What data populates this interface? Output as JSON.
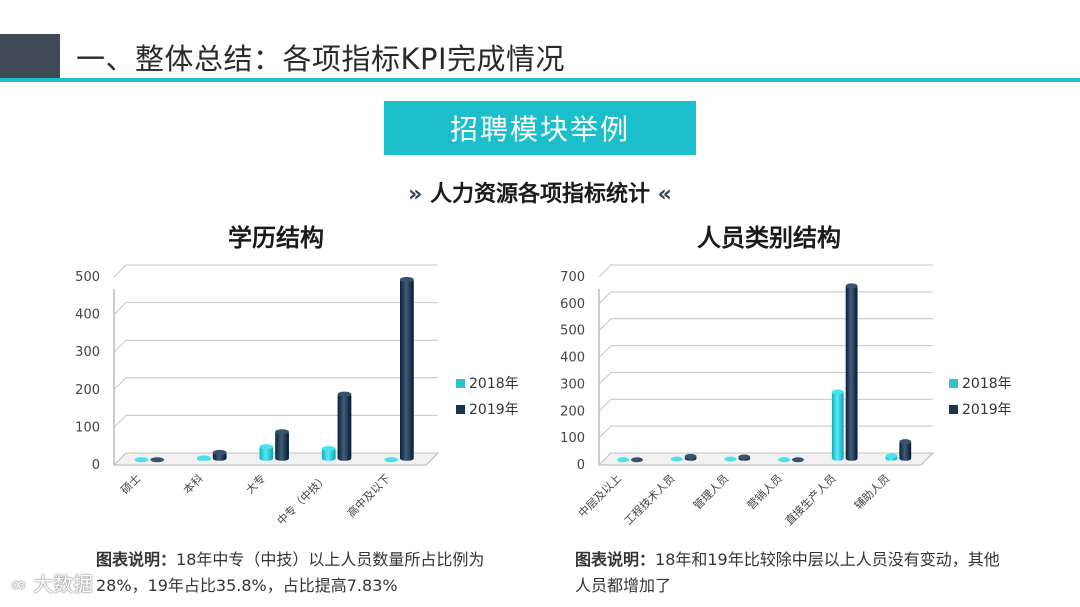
{
  "header": {
    "title": "一、整体总结：各项指标KPI完成情况"
  },
  "banner": {
    "label": "招聘模块举例"
  },
  "section": {
    "left_chevron": "»",
    "title": "人力资源各项指标统计",
    "right_chevron": "«"
  },
  "colors": {
    "accent": "#1bbfcc",
    "series_2018": "#2cc3cf",
    "series_2019": "#1b3550",
    "header_block": "#404a56"
  },
  "chart_data": [
    {
      "type": "bar",
      "title": "学历结构",
      "categories": [
        "硕士",
        "本科",
        "大专",
        "中专（中技）",
        "高中及以下"
      ],
      "series": [
        {
          "name": "2018年",
          "values": [
            3,
            10,
            40,
            35,
            2
          ]
        },
        {
          "name": "2019年",
          "values": [
            5,
            25,
            80,
            180,
            485
          ]
        }
      ],
      "ylim": [
        0,
        500
      ],
      "yticks": [
        0,
        100,
        200,
        300,
        400,
        500
      ],
      "grid": true,
      "legend": "right"
    },
    {
      "type": "bar",
      "title": "人员类别结构",
      "categories": [
        "中层及以上",
        "工程技术人员",
        "管理人员",
        "营销人员",
        "直接生产人员",
        "辅助人员"
      ],
      "series": [
        {
          "name": "2018年",
          "values": [
            3,
            10,
            10,
            3,
            260,
            22
          ]
        },
        {
          "name": "2019年",
          "values": [
            3,
            20,
            18,
            5,
            655,
            75
          ]
        }
      ],
      "ylim": [
        0,
        700
      ],
      "yticks": [
        0,
        100,
        200,
        300,
        400,
        500,
        600,
        700
      ],
      "grid": true,
      "legend": "right"
    }
  ],
  "captions": {
    "left_label": "图表说明：",
    "left_text": "18年中专（中技）以上人员数量所占比例为28%，19年占比35.8%，占比提高7.83%",
    "right_label": "图表说明：",
    "right_text": "18年和19年比较除中层以上人员没有变动，其他人员都增加了"
  },
  "watermark": {
    "text": "大数据"
  }
}
